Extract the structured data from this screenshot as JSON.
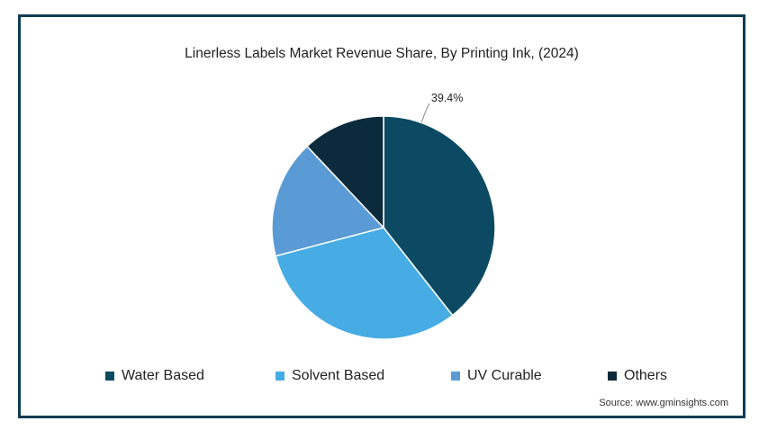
{
  "chart_data": {
    "type": "pie",
    "title": "Linerless Labels Market Revenue Share, By Printing Ink, (2024)",
    "categories": [
      "Water Based",
      "Solvent Based",
      "UV Curable",
      "Others"
    ],
    "values": [
      39.4,
      31.5,
      17.1,
      12.0
    ],
    "colors": [
      "#0c4a63",
      "#46ace3",
      "#5b9bd5",
      "#0b2a3c"
    ],
    "data_labels": [
      "39.4%",
      "",
      "",
      ""
    ],
    "legend_position": "bottom"
  },
  "source": "Source: www.gminsights.com"
}
